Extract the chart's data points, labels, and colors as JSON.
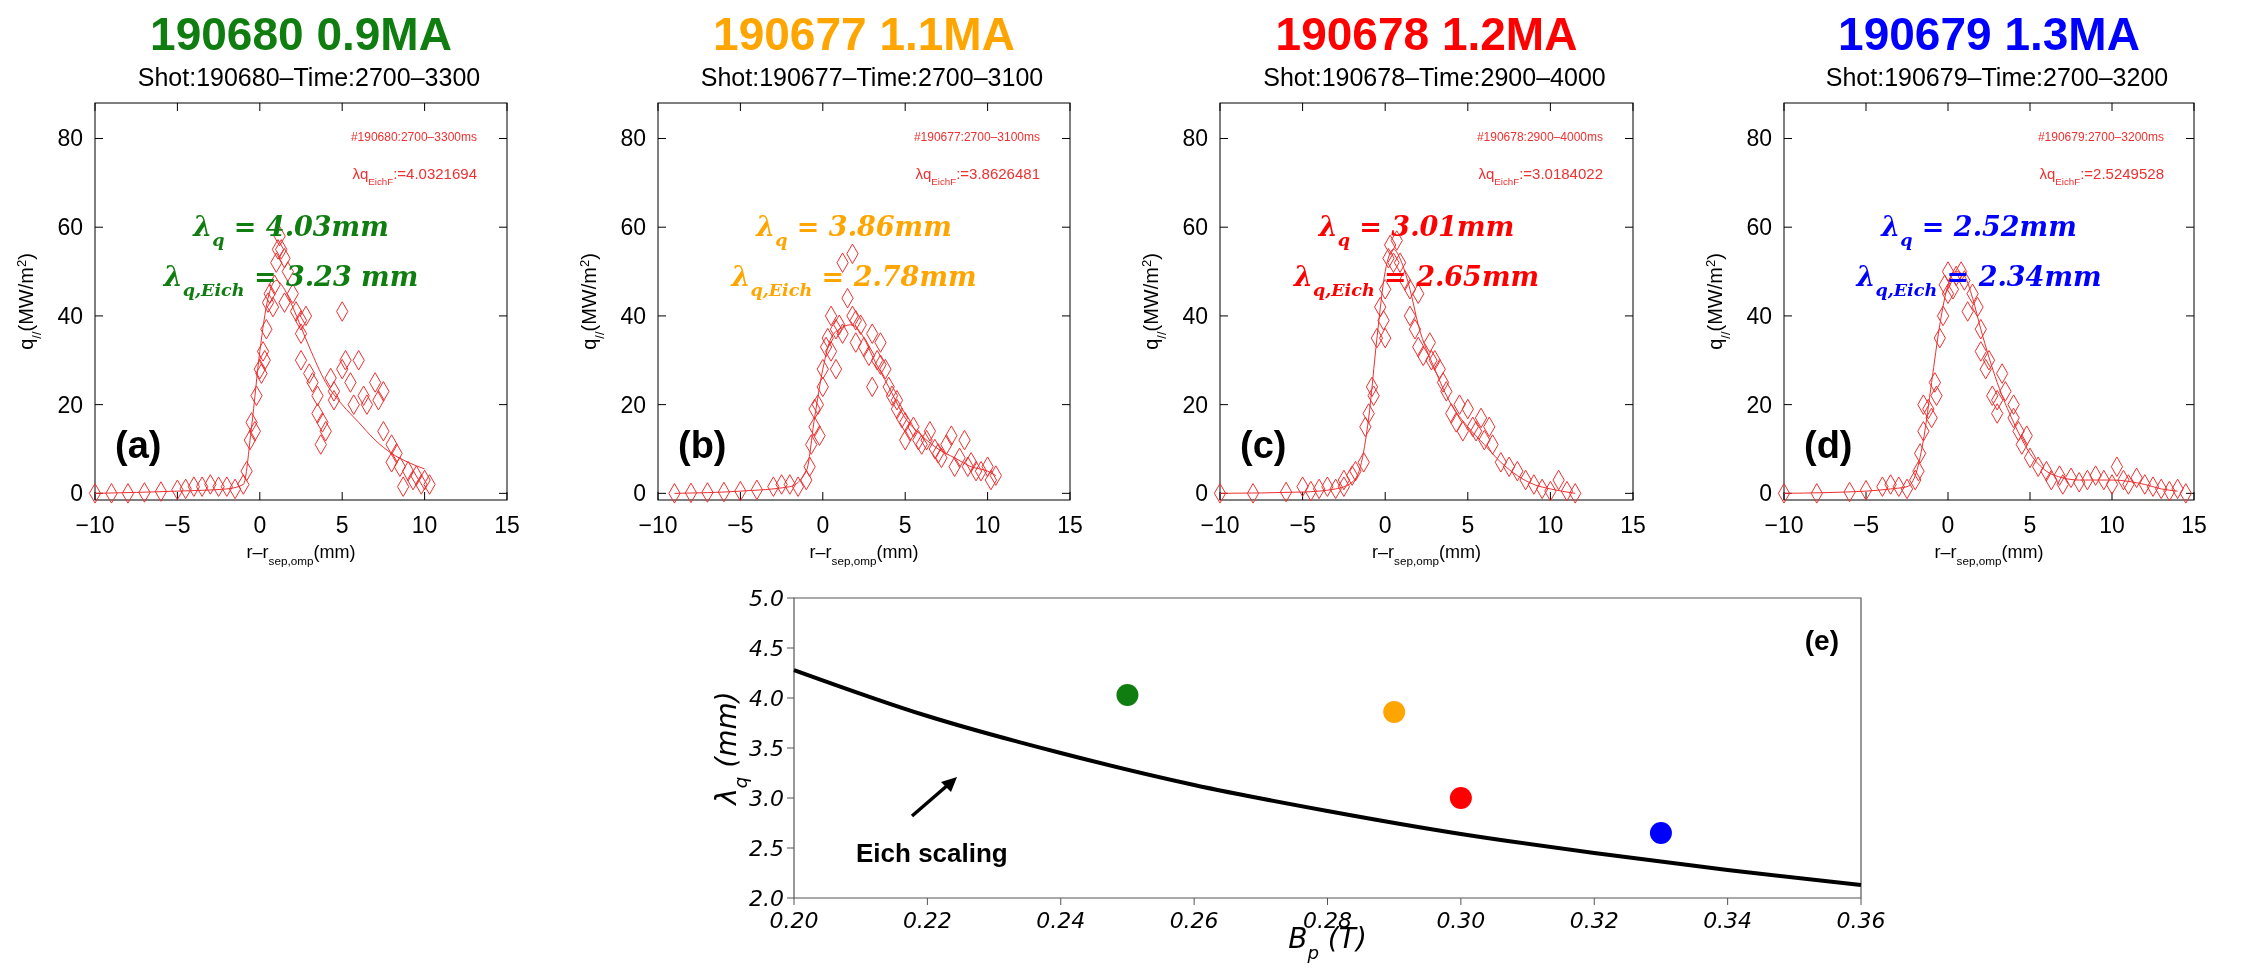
{
  "chart_data": [
    {
      "type": "scatter",
      "title": "190680 0.9MA",
      "subtitle": "Shot:190680–Time:2700–3300",
      "xlabel": "r–r$_{sep,omp}$(mm)",
      "ylabel": "q$_{//}$(MW/m$^{2}$)",
      "xlim": [
        -10,
        15
      ],
      "ylim": [
        -1.5,
        88
      ],
      "xticks": [
        -10,
        -5,
        0,
        5,
        10,
        15
      ],
      "yticks": [
        0,
        20,
        40,
        60,
        80
      ],
      "annotations": [
        "#190680:2700–3300ms",
        "λq$_{EichF}$:=4.0321694",
        "λ$_{q}$ = 4.03mm",
        "λ$_{q,Eich}$ = 3.23 mm",
        "(a)"
      ],
      "series": [
        {
          "marker": "diamond",
          "color": "#ee3030",
          "x": [
            -10,
            -9,
            -8,
            -7,
            -6,
            -5,
            -4.5,
            -4,
            -3.5,
            -3,
            -2.5,
            -2,
            -1.5,
            -1,
            -0.8,
            -0.6,
            -0.5,
            -0.3,
            -0.2,
            0,
            0.2,
            0.3,
            0.1,
            0.4,
            0.5,
            0.6,
            0.8,
            0.9,
            1,
            1.1,
            1.2,
            1.3,
            1.5,
            1.7,
            1.5,
            2,
            2.2,
            2.5,
            2.5,
            2.8,
            2.5,
            3,
            3.2,
            3.5,
            3.5,
            3.8,
            4,
            3.7,
            4.3,
            4.5,
            4.5,
            5,
            5,
            5.2,
            5.5,
            5.7,
            6,
            6.3,
            6.5,
            7,
            7.2,
            7.5,
            7.5,
            8,
            8.3,
            8,
            8.5,
            9,
            9.3,
            9.5,
            9.8,
            10,
            10.3,
            8.7
          ],
          "values": [
            0,
            0,
            0,
            0.2,
            0.4,
            0.8,
            1,
            1.5,
            1.5,
            2,
            1.5,
            1.5,
            1,
            2,
            5,
            12,
            16,
            14,
            22,
            28,
            32,
            30,
            27,
            37,
            43,
            45,
            42,
            47,
            52,
            55,
            58,
            55,
            53,
            50,
            43,
            45,
            41,
            39,
            36,
            40,
            30,
            27,
            25,
            22,
            18,
            16,
            14,
            11,
            26,
            23,
            21,
            28,
            41,
            30,
            25,
            20,
            30,
            22,
            20,
            25,
            21,
            23,
            14,
            11,
            9,
            7,
            6,
            5,
            3,
            4,
            2,
            3,
            2,
            1.5
          ]
        },
        {
          "type": "line",
          "color": "#ee3030",
          "x": [
            -10,
            -5,
            -2,
            -1,
            -0.5,
            0,
            0.5,
            1,
            1.5,
            2,
            3,
            4,
            5,
            6,
            7,
            8,
            9,
            10
          ],
          "values": [
            0,
            0.5,
            1,
            2,
            15,
            32,
            44,
            48,
            46,
            42,
            33,
            25,
            20,
            16,
            12,
            9,
            7,
            5.5
          ]
        }
      ]
    },
    {
      "type": "scatter",
      "title": "190677 1.1MA",
      "subtitle": "Shot:190677–Time:2700–3100",
      "xlabel": "r–r$_{sep,omp}$(mm)",
      "ylabel": "q$_{//}$(MW/m$^{2}$)",
      "xlim": [
        -10,
        15
      ],
      "ylim": [
        -1.5,
        88
      ],
      "xticks": [
        -10,
        -5,
        0,
        5,
        10,
        15
      ],
      "yticks": [
        0,
        20,
        40,
        60,
        80
      ],
      "annotations": [
        "#190677:2700–3100ms",
        "λq$_{EichF}$:=3.8626481",
        "λ$_{q}$ = 3.86mm",
        "λ$_{q,Eich}$ = 2.78mm",
        "(b)"
      ],
      "series": [
        {
          "marker": "diamond",
          "color": "#ee3030",
          "x": [
            -9,
            -8,
            -7,
            -6,
            -5,
            -4,
            -3,
            -2.5,
            -2,
            -1.5,
            -1,
            -0.8,
            -0.7,
            -0.5,
            -0.5,
            -0.3,
            -0.2,
            0,
            0,
            0.2,
            0.3,
            0.5,
            0.5,
            0.8,
            0.8,
            1,
            1.2,
            1.2,
            1.5,
            1.8,
            1.8,
            2,
            2,
            2.3,
            2.5,
            2.8,
            3,
            3,
            3.3,
            3.5,
            3.5,
            3.8,
            4,
            4.2,
            4.5,
            4.5,
            4.8,
            5,
            5,
            5.3,
            5.5,
            5.8,
            6,
            6.3,
            6.5,
            6.8,
            7,
            7.2,
            7.5,
            7.8,
            8,
            8.3,
            8.6,
            8.8,
            9,
            9.3,
            9.6,
            10,
            10.2,
            10.5
          ],
          "values": [
            0,
            0.1,
            0.2,
            0.3,
            0.5,
            0.8,
            1.5,
            2,
            2,
            1.5,
            3,
            6,
            11,
            15,
            19,
            20,
            13,
            24,
            28,
            33,
            35,
            40,
            32,
            37,
            28,
            38,
            36,
            52,
            44,
            54,
            40,
            34,
            39,
            38,
            33,
            31,
            36,
            24,
            30,
            34,
            29,
            28,
            24,
            22,
            19,
            21,
            17,
            12,
            16,
            14,
            15,
            12,
            11,
            12,
            14,
            10,
            9,
            8,
            11,
            13,
            6,
            8,
            12,
            6,
            7,
            5,
            5,
            6,
            3,
            4
          ]
        },
        {
          "type": "line",
          "color": "#ee3030",
          "x": [
            -9,
            -5,
            -2,
            -1,
            -0.5,
            0,
            0.5,
            1,
            1.7,
            2.5,
            3,
            4,
            5,
            6,
            7,
            8,
            9,
            10,
            10.5
          ],
          "values": [
            0,
            0.5,
            1.5,
            5,
            17,
            28,
            35,
            37,
            38,
            35,
            31,
            24,
            17,
            13,
            10,
            8,
            6,
            5,
            4
          ]
        }
      ]
    },
    {
      "type": "scatter",
      "title": "190678 1.2MA",
      "subtitle": "Shot:190678–Time:2900–4000",
      "xlabel": "r–r$_{sep,omp}$(mm)",
      "ylabel": "q$_{//}$(MW/m$^{2}$)",
      "xlim": [
        -10,
        15
      ],
      "ylim": [
        -1.5,
        88
      ],
      "xticks": [
        -10,
        -5,
        0,
        5,
        10,
        15
      ],
      "yticks": [
        0,
        20,
        40,
        60,
        80
      ],
      "annotations": [
        "#190678:2900–4000ms",
        "λq$_{EichF}$:=3.0184022",
        "λ$_{q}$ = 3.01mm",
        "λ$_{q,Eich}$ = 2.65mm",
        "(c)"
      ],
      "series": [
        {
          "marker": "diamond",
          "color": "#ee3030",
          "x": [
            -10,
            -8,
            -6,
            -5,
            -4.5,
            -4,
            -3.5,
            -3,
            -2.5,
            -2.5,
            -2,
            -1.8,
            -1.3,
            -1.2,
            -1,
            -0.8,
            -0.7,
            -0.5,
            -0.3,
            -0.1,
            0,
            0,
            0.2,
            0.3,
            0.5,
            0.7,
            0.9,
            1.2,
            1.5,
            1.5,
            1.8,
            2,
            2,
            2.3,
            2.7,
            2.8,
            3,
            3.3,
            3.5,
            3.7,
            4,
            4.3,
            4.5,
            4.7,
            5,
            5.3,
            5.5,
            5.8,
            6,
            6.3,
            6.5,
            7,
            7.5,
            8,
            8.5,
            9,
            9.5,
            10,
            10.5,
            11,
            11.5
          ],
          "values": [
            0,
            0,
            0.3,
            1.5,
            0.5,
            1,
            1.5,
            1,
            1.5,
            3,
            4,
            5,
            7,
            15,
            18,
            24,
            22,
            35,
            42,
            39,
            35,
            46,
            53,
            56,
            52,
            57,
            52,
            48,
            46,
            40,
            37,
            45,
            33,
            31,
            34,
            30,
            30,
            28,
            25,
            23,
            18,
            16,
            20,
            14,
            19,
            15,
            14,
            17,
            12,
            15,
            11,
            7,
            6,
            5,
            3,
            2,
            1,
            0.5,
            3,
            0.5,
            0
          ]
        },
        {
          "type": "line",
          "color": "#ee3030",
          "x": [
            -10,
            -5,
            -3,
            -2,
            -1.5,
            -1,
            -0.5,
            0,
            0.5,
            1,
            1.5,
            2,
            3,
            4,
            5,
            6,
            7,
            8,
            9,
            10,
            11.5
          ],
          "values": [
            0,
            0.3,
            1,
            2.5,
            6,
            17,
            35,
            50,
            55,
            52,
            46,
            38,
            28,
            20,
            15,
            11,
            7,
            4,
            2,
            1,
            0
          ]
        }
      ]
    },
    {
      "type": "scatter",
      "title": "190679 1.3MA",
      "subtitle": "Shot:190679–Time:2700–3200",
      "xlabel": "r–r$_{sep,omp}$(mm)",
      "ylabel": "q$_{//}$(MW/m$^{2}$)",
      "xlim": [
        -10,
        15
      ],
      "ylim": [
        -1.5,
        88
      ],
      "xticks": [
        -10,
        -5,
        0,
        5,
        10,
        15
      ],
      "yticks": [
        0,
        20,
        40,
        60,
        80
      ],
      "annotations": [
        "#190679:2700–3200ms",
        "λq$_{EichF}$:=2.5249528",
        "λ$_{q}$ = 2.52mm",
        "λ$_{q,Eich}$ = 2.34mm",
        "(d)"
      ],
      "series": [
        {
          "marker": "diamond",
          "color": "#ee3030",
          "x": [
            -10,
            -8,
            -6,
            -5,
            -4,
            -3.5,
            -3,
            -2.5,
            -2,
            -1.8,
            -1.7,
            -1.5,
            -1.5,
            -1.2,
            -1,
            -0.8,
            -0.7,
            -0.5,
            -0.3,
            -0.2,
            0,
            0,
            0.3,
            0.5,
            0.8,
            1,
            1.2,
            1.5,
            1.8,
            2,
            2,
            2.3,
            2.5,
            2.7,
            3,
            3,
            3.3,
            3.5,
            4,
            4,
            4.3,
            4.5,
            4.8,
            5,
            5.5,
            6,
            6.3,
            6.8,
            7,
            7.5,
            8,
            8.5,
            9,
            9.5,
            10,
            10.3,
            10.7,
            11,
            11.5,
            12,
            12.5,
            13,
            13.5,
            14,
            14.5
          ],
          "values": [
            0,
            0,
            0.3,
            0.7,
            1.5,
            2,
            1.5,
            1,
            3,
            5,
            9,
            14,
            20,
            19,
            17,
            25,
            22,
            35,
            40,
            47,
            50,
            45,
            46,
            49,
            50,
            48,
            41,
            45,
            42,
            37,
            32,
            28,
            30,
            22,
            18,
            21,
            27,
            23,
            20,
            17,
            14,
            11,
            13,
            8,
            6,
            5,
            3,
            4,
            2,
            3.5,
            2.5,
            3,
            4,
            3,
            2,
            6,
            3,
            2,
            3.5,
            2,
            1.5,
            1,
            0.5,
            1,
            0
          ]
        },
        {
          "type": "line",
          "color": "#ee3030",
          "x": [
            -10,
            -5,
            -3.5,
            -2.5,
            -2,
            -1.5,
            -1,
            -0.5,
            0,
            0.5,
            1,
            1.5,
            2,
            3,
            4,
            5,
            6,
            7,
            8,
            10,
            12,
            13,
            14
          ],
          "values": [
            0,
            0.5,
            1,
            1.5,
            4,
            12,
            25,
            38,
            47,
            50,
            49,
            44,
            37,
            25,
            16,
            9,
            5,
            3.5,
            3,
            3,
            2,
            1,
            0.5
          ]
        }
      ]
    },
    {
      "type": "scatter",
      "xlabel": "B$_{p}$ (T)",
      "ylabel": "λ$_{q}$ (mm)",
      "xlim": [
        0.2,
        0.36
      ],
      "ylim": [
        2,
        5
      ],
      "xticks": [
        {
          "value": 0.2,
          "label": "0.20"
        },
        {
          "value": 0.22,
          "label": "0.22"
        },
        {
          "value": 0.24,
          "label": "0.24"
        },
        {
          "value": 0.26,
          "label": "0.26"
        },
        {
          "value": 0.28,
          "label": "0.28"
        },
        {
          "value": 0.3,
          "label": "0.30"
        },
        {
          "value": 0.32,
          "label": "0.32"
        },
        {
          "value": 0.34,
          "label": "0.34"
        },
        {
          "value": 0.36,
          "label": "0.36"
        }
      ],
      "yticks": [
        {
          "value": 2,
          "label": "2.0"
        },
        {
          "value": 2.5,
          "label": "2.5"
        },
        {
          "value": 3,
          "label": "3.0"
        },
        {
          "value": 3.5,
          "label": "3.5"
        },
        {
          "value": 4,
          "label": "4.0"
        },
        {
          "value": 4.5,
          "label": "4.5"
        },
        {
          "value": 5,
          "label": "5.0"
        }
      ],
      "annotations": [
        "(e)",
        "Eich scaling"
      ],
      "series": [
        {
          "type": "line",
          "color": "#000000",
          "x": [
            0.2,
            0.22,
            0.24,
            0.26,
            0.28,
            0.3,
            0.32,
            0.34,
            0.36
          ],
          "values": [
            4.28,
            3.82,
            3.45,
            3.13,
            2.87,
            2.64,
            2.45,
            2.28,
            2.13
          ]
        },
        {
          "marker": "circle",
          "x": [
            0.25,
            0.29,
            0.3,
            0.33
          ],
          "values": [
            4.03,
            3.86,
            3.0,
            2.65
          ],
          "colors": [
            "#0f7d0f",
            "#ffa500",
            "#ff0000",
            "#0000ff"
          ]
        }
      ]
    }
  ]
}
